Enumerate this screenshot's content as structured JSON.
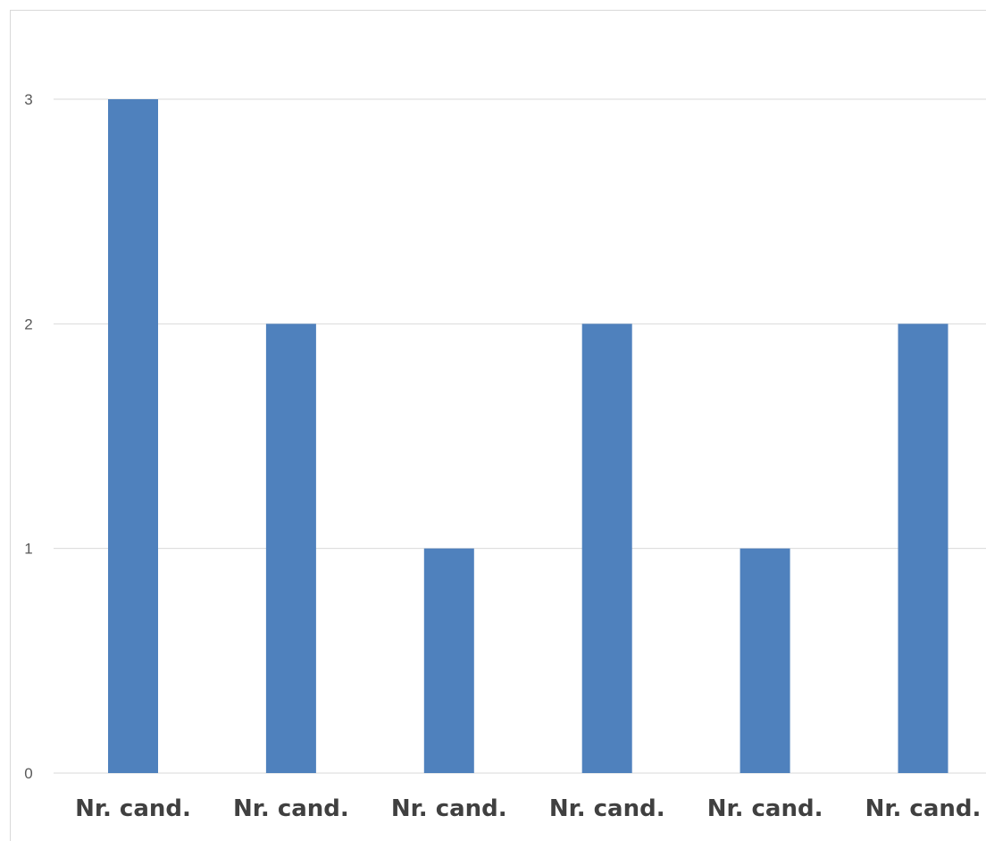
{
  "chart_data": {
    "type": "bar",
    "categories": [
      "Nr. cand.",
      "Nr. cand.",
      "Nr. cand.",
      "Nr. cand.",
      "Nr. cand.",
      "Nr. cand."
    ],
    "values": [
      3,
      2,
      1,
      2,
      1,
      2
    ],
    "title": "",
    "xlabel": "",
    "ylabel": "",
    "ylim": [
      0,
      3
    ],
    "yticks": [
      0,
      1,
      2,
      3
    ],
    "grid": true,
    "legend": "none",
    "colors": {
      "bar": "#4f81bd",
      "grid": "#d9d9d9",
      "tick_text": "#595959",
      "category_text": "#404040"
    }
  }
}
